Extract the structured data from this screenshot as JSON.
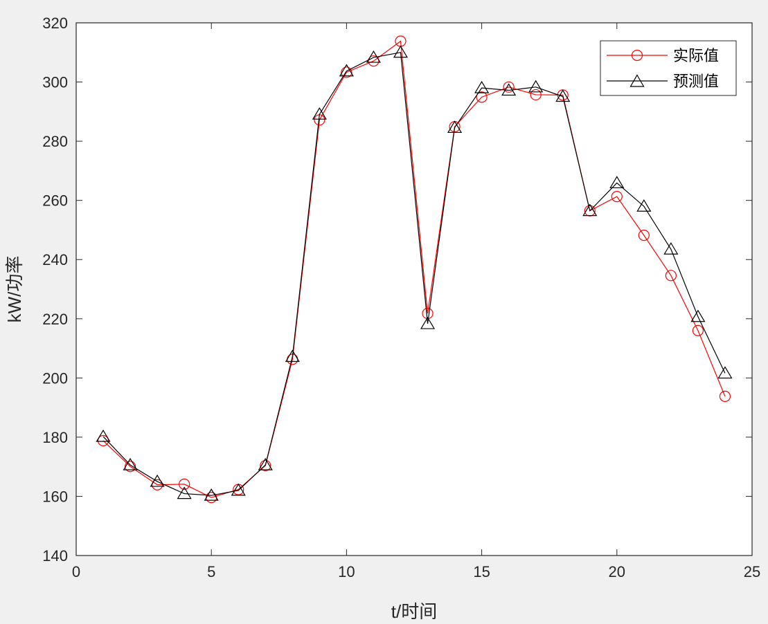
{
  "chart_data": {
    "type": "line",
    "title": "",
    "xlabel": "t/时间",
    "ylabel": "kW/功率",
    "xlim": [
      0,
      25
    ],
    "ylim": [
      140,
      320
    ],
    "xticks": [
      0,
      5,
      10,
      15,
      20,
      25
    ],
    "yticks": [
      140,
      160,
      180,
      200,
      220,
      240,
      260,
      280,
      300,
      320
    ],
    "grid": false,
    "legend_position": "top-right",
    "x": [
      1,
      2,
      3,
      4,
      5,
      6,
      7,
      8,
      9,
      10,
      11,
      12,
      13,
      14,
      15,
      16,
      17,
      18,
      19,
      20,
      21,
      22,
      23,
      24
    ],
    "series": [
      {
        "name": "实际值",
        "color": "#ff0000",
        "marker": "circle",
        "values": [
          178.8,
          170.1,
          163.9,
          164.1,
          159.6,
          162.3,
          170.4,
          206.3,
          287.2,
          303.3,
          307.1,
          313.8,
          221.8,
          284.9,
          294.9,
          298.3,
          295.7,
          295.6,
          256.5,
          261.3,
          248.2,
          234.6,
          216.0,
          193.8
        ]
      },
      {
        "name": "预测值",
        "color": "#000000",
        "marker": "triangle",
        "values": [
          180.2,
          170.6,
          165.0,
          160.9,
          160.3,
          162.0,
          170.6,
          207.2,
          289.1,
          303.7,
          308.3,
          310.0,
          218.3,
          284.6,
          298.0,
          297.2,
          298.3,
          295.1,
          256.5,
          265.9,
          258.0,
          243.5,
          220.7,
          201.6
        ]
      }
    ]
  }
}
